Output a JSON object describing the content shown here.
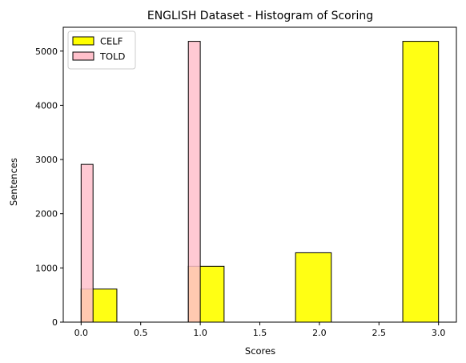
{
  "chart_data": {
    "type": "bar",
    "title": "ENGLISH Dataset - Histogram of Scoring",
    "xlabel": "Scores",
    "ylabel": "Sentences",
    "xlim": [
      -0.15,
      3.15
    ],
    "ylim": [
      0,
      5440
    ],
    "x_ticks": [
      0.0,
      0.5,
      1.0,
      1.5,
      2.0,
      2.5,
      3.0
    ],
    "x_tick_labels": [
      "0.0",
      "0.5",
      "1.0",
      "1.5",
      "2.0",
      "2.5",
      "3.0"
    ],
    "y_ticks": [
      0,
      1000,
      2000,
      3000,
      4000,
      5000
    ],
    "y_tick_labels": [
      "0",
      "1000",
      "2000",
      "3000",
      "4000",
      "5000"
    ],
    "grid": false,
    "legend_position": "top-left",
    "series": [
      {
        "name": "CELF",
        "color": "#ffff00",
        "bins": [
          {
            "x0": 0.0,
            "x1": 0.3,
            "value": 610
          },
          {
            "x0": 0.9,
            "x1": 1.2,
            "value": 1030
          },
          {
            "x0": 1.8,
            "x1": 2.1,
            "value": 1280
          },
          {
            "x0": 2.7,
            "x1": 3.0,
            "value": 5180
          }
        ]
      },
      {
        "name": "TOLD",
        "color": "#ffc0cb",
        "bins": [
          {
            "x0": 0.0,
            "x1": 0.1,
            "value": 2910
          },
          {
            "x0": 0.9,
            "x1": 1.0,
            "value": 5180
          }
        ]
      }
    ]
  }
}
